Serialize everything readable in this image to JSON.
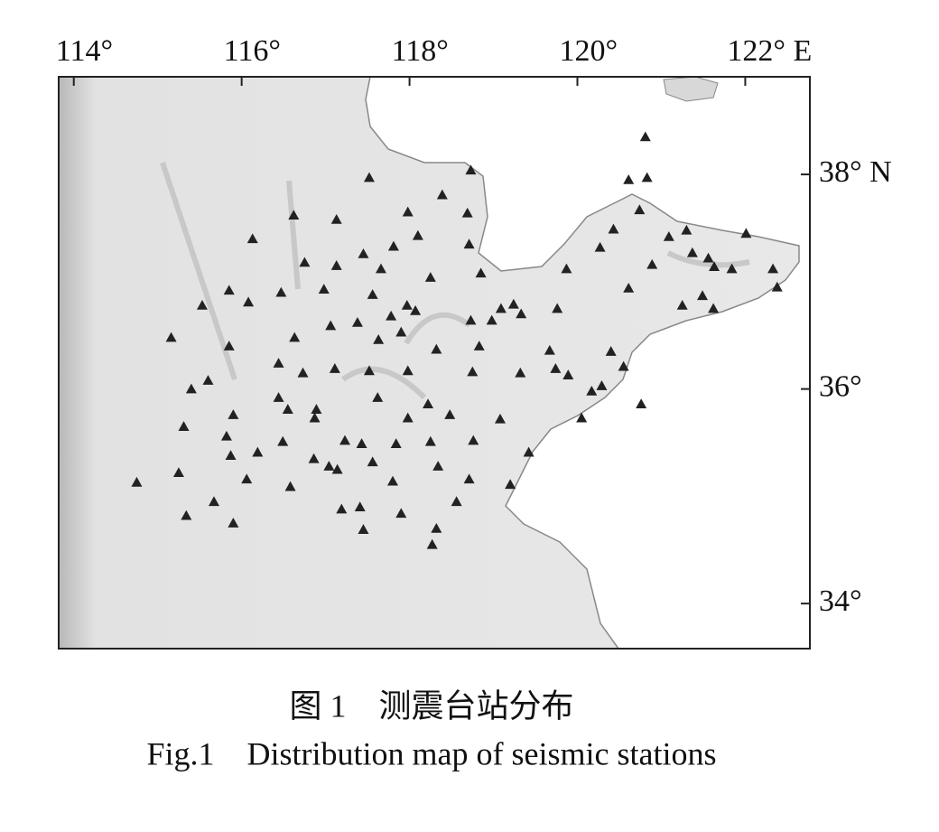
{
  "chart_data": {
    "type": "scatter",
    "xlim": [
      113.82,
      122.77
    ],
    "ylim": [
      33.58,
      38.91
    ],
    "xticks": [
      {
        "value": 114,
        "label": "114°"
      },
      {
        "value": 116,
        "label": "116°"
      },
      {
        "value": 118,
        "label": "118°"
      },
      {
        "value": 120,
        "label": "120°"
      },
      {
        "value": 122,
        "label": "122° E"
      }
    ],
    "yticks": [
      {
        "value": 34,
        "label": "34°"
      },
      {
        "value": 36,
        "label": "36°"
      },
      {
        "value": 38,
        "label": "38° N"
      }
    ],
    "color": "#222222",
    "x": [
      117.52,
      118.73,
      118.39,
      116.62,
      117.13,
      117.98,
      118.69,
      116.13,
      118.1,
      117.81,
      118.71,
      117.45,
      116.75,
      117.13,
      117.66,
      118.25,
      118.85,
      115.85,
      115.53,
      116.08,
      116.47,
      116.98,
      117.56,
      117.97,
      117.78,
      118.07,
      118.73,
      118.98,
      119.09,
      119.24,
      119.33,
      119.76,
      119.87,
      115.16,
      115.85,
      116.63,
      117.06,
      117.38,
      117.63,
      117.9,
      118.32,
      118.83,
      119.67,
      116.44,
      116.73,
      117.11,
      117.52,
      117.98,
      118.75,
      119.32,
      119.89,
      115.4,
      115.6,
      116.44,
      116.55,
      116.89,
      117.62,
      118.22,
      118.48,
      119.08,
      115.9,
      115.31,
      115.82,
      116.49,
      116.87,
      117.98,
      117.23,
      117.43,
      117.84,
      118.25,
      118.76,
      115.87,
      116.19,
      116.86,
      117.04,
      117.14,
      117.56,
      118.34,
      118.71,
      119.2,
      119.42,
      115.25,
      116.06,
      116.58,
      117.8,
      114.75,
      115.67,
      117.19,
      117.41,
      117.9,
      118.56,
      115.34,
      115.9,
      117.45,
      118.32,
      118.27,
      120.81,
      120.61,
      120.83,
      120.74,
      120.43,
      120.27,
      121.09,
      121.3,
      122.01,
      120.89,
      121.37,
      121.56,
      121.63,
      121.84,
      122.33,
      122.38,
      120.61,
      121.25,
      121.49,
      121.62,
      120.4,
      120.55,
      120.29,
      120.17,
      120.05,
      120.76,
      119.74
    ],
    "y": [
      37.97,
      38.04,
      37.81,
      37.62,
      37.58,
      37.65,
      37.64,
      37.4,
      37.43,
      37.33,
      37.35,
      37.26,
      37.18,
      37.15,
      37.12,
      37.04,
      37.08,
      36.92,
      36.78,
      36.81,
      36.9,
      36.93,
      36.88,
      36.78,
      36.68,
      36.73,
      36.64,
      36.64,
      36.75,
      36.79,
      36.7,
      36.75,
      37.12,
      36.48,
      36.4,
      36.48,
      36.59,
      36.62,
      36.46,
      36.53,
      36.37,
      36.4,
      36.36,
      36.24,
      36.15,
      36.19,
      36.17,
      36.17,
      36.16,
      36.15,
      36.13,
      36.0,
      36.08,
      35.92,
      35.81,
      35.81,
      35.92,
      35.86,
      35.76,
      35.72,
      35.76,
      35.65,
      35.56,
      35.51,
      35.73,
      35.73,
      35.52,
      35.49,
      35.49,
      35.51,
      35.52,
      35.38,
      35.41,
      35.35,
      35.28,
      35.25,
      35.32,
      35.28,
      35.16,
      35.11,
      35.41,
      35.22,
      35.16,
      35.09,
      35.14,
      35.13,
      34.95,
      34.88,
      34.9,
      34.84,
      34.95,
      34.82,
      34.75,
      34.69,
      34.7,
      34.55,
      38.35,
      37.95,
      37.97,
      37.67,
      37.49,
      37.32,
      37.42,
      37.48,
      37.45,
      37.16,
      37.27,
      37.22,
      37.14,
      37.12,
      37.12,
      36.95,
      36.94,
      36.78,
      36.87,
      36.75,
      36.35,
      36.21,
      36.03,
      35.98,
      35.73,
      35.86,
      36.19
    ]
  },
  "figure": {
    "caption_cn": "图 1　测震台站分布",
    "caption_en": "Fig.1　Distribution map of seismic stations"
  }
}
